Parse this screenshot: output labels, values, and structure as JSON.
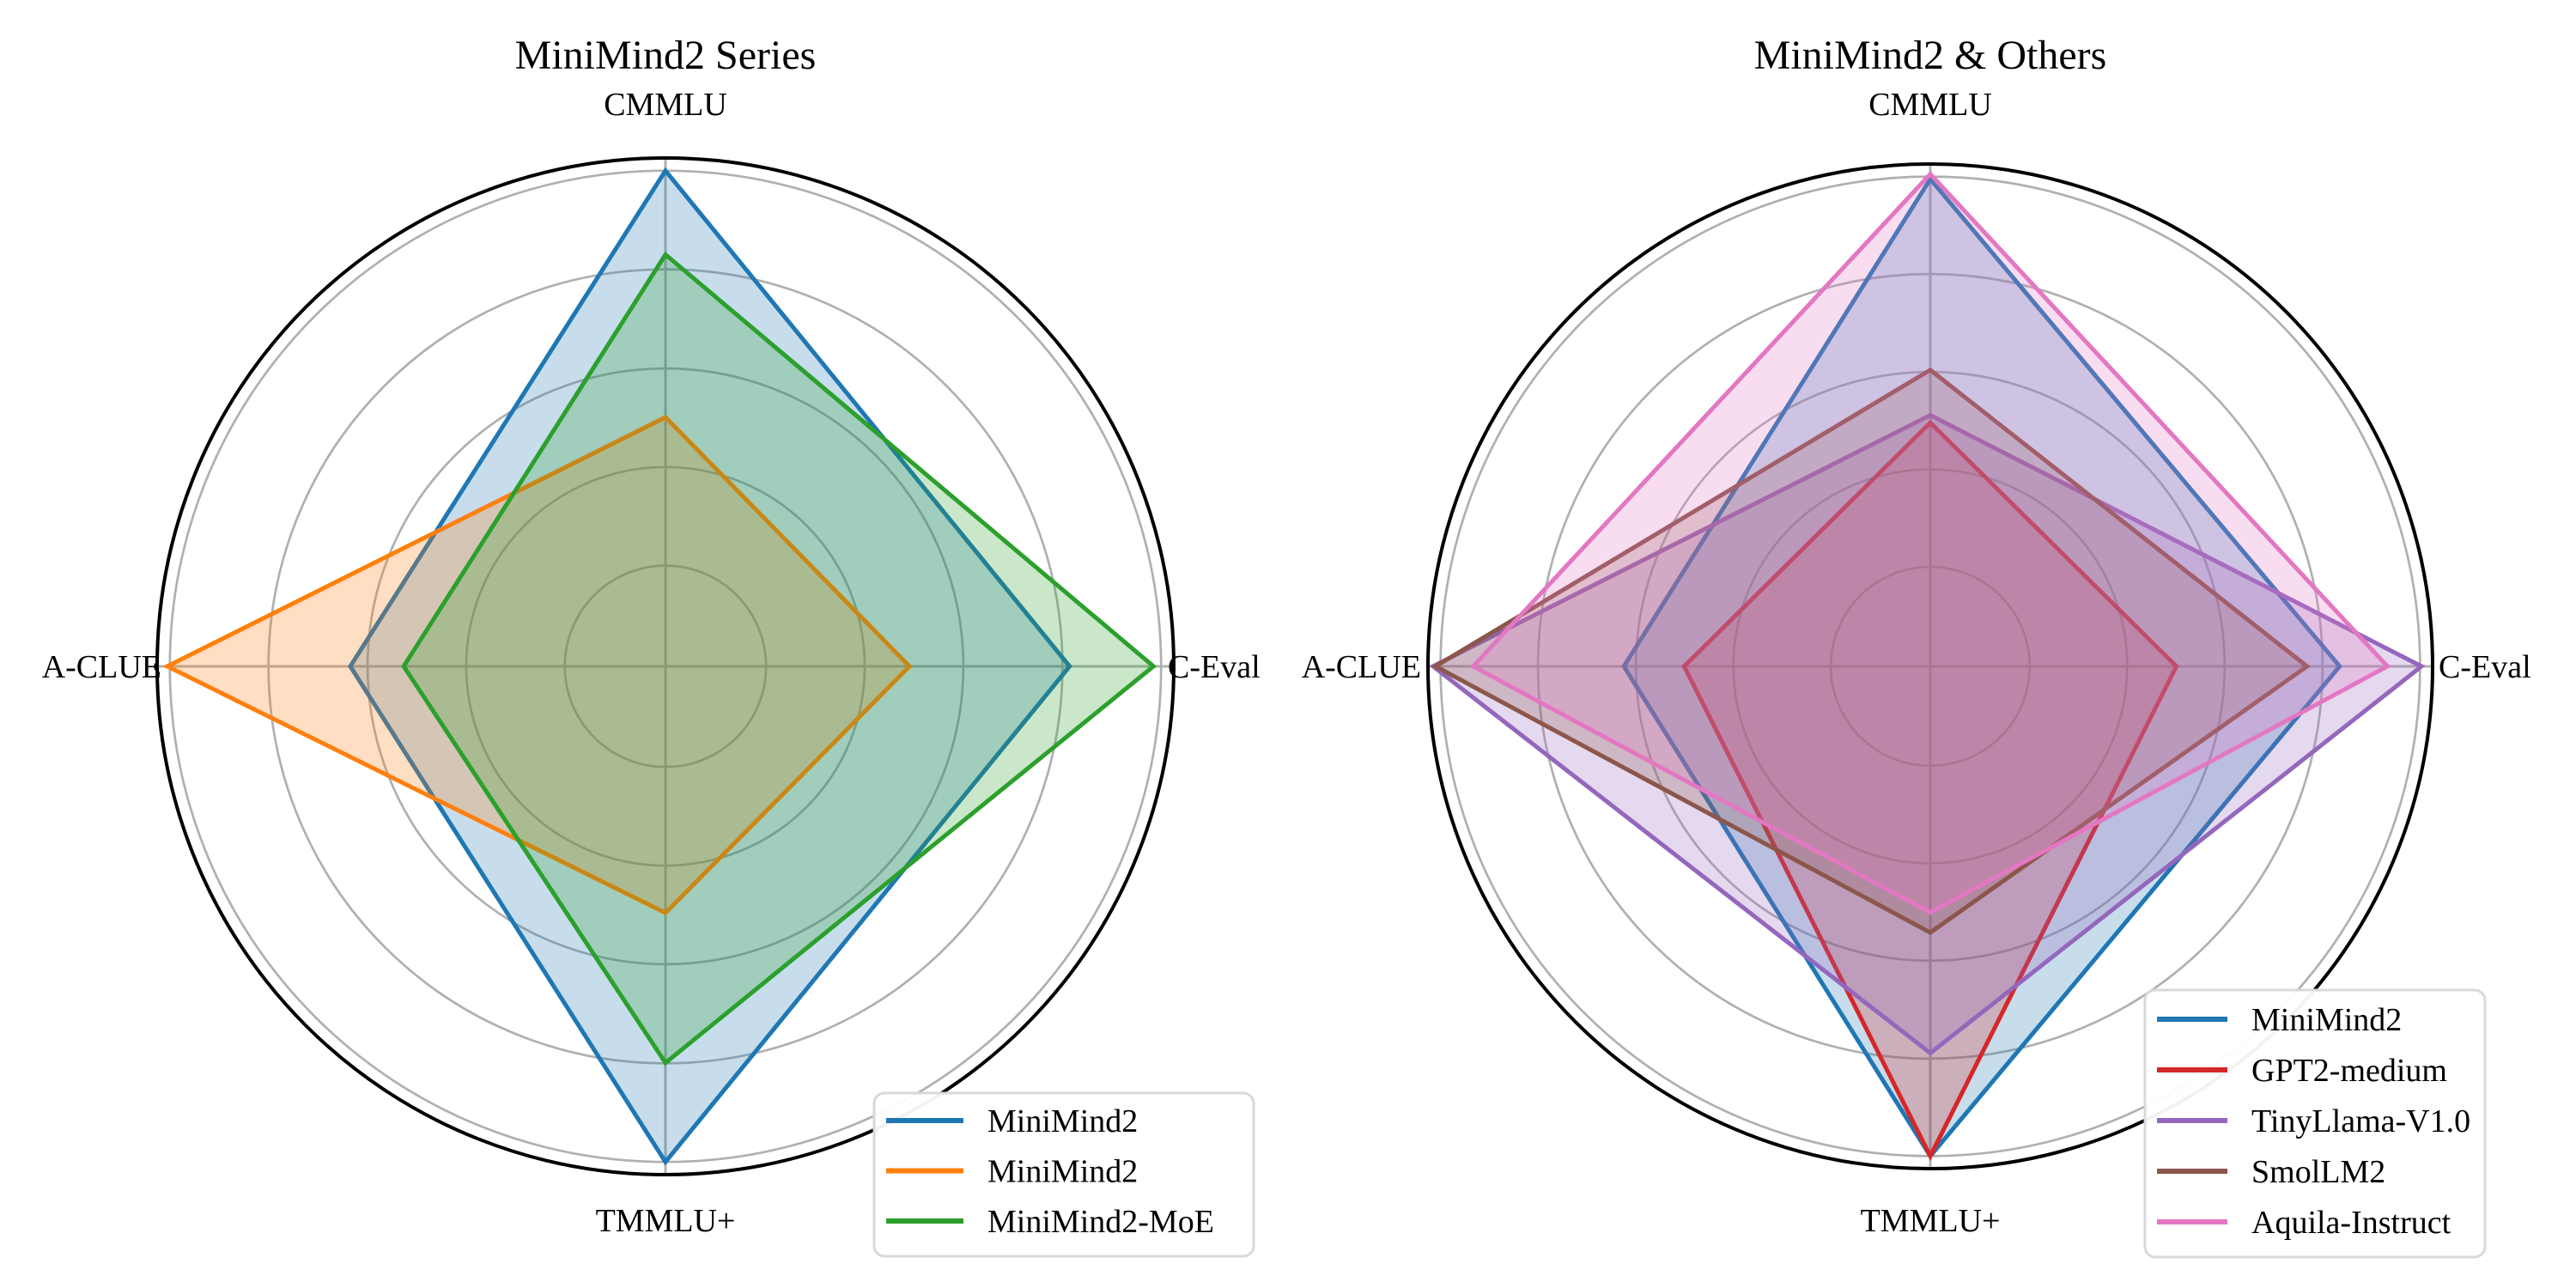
{
  "figure": {
    "background": "#ffffff",
    "left_title": "MiniMind2 Series",
    "right_title": "MiniMind2 & Others"
  },
  "style": {
    "grid_color": "#b0b0b0",
    "spine_color": "#000000",
    "fill_opacity": 0.25,
    "series_line_width": 5,
    "legend_border_color": "#d9d9d9",
    "legend_background": "rgba(255,255,255,0.95)"
  },
  "chart_data": [
    {
      "type": "radar",
      "title": "MiniMind2 Series",
      "axes": [
        "CMMLU",
        "C-Eval",
        "TMMLU+",
        "A-CLUE"
      ],
      "axis_positions": [
        "top",
        "right",
        "bottom",
        "left"
      ],
      "scale": {
        "min": 0,
        "max": 1,
        "note": "no numeric tick labels shown; values estimated as fraction of outer circle radius",
        "grid_rings": [
          0.198,
          0.392,
          0.586,
          0.781,
          0.975
        ]
      },
      "series": [
        {
          "name": "MiniMind2",
          "color": "#1f77b4",
          "values": [
            0.975,
            0.795,
            0.975,
            0.62
          ]
        },
        {
          "name": "MiniMind2",
          "color": "#ff7f0e",
          "values": [
            0.49,
            0.48,
            0.485,
            0.98
          ]
        },
        {
          "name": "MiniMind2-MoE",
          "color": "#2ca02c",
          "values": [
            0.81,
            0.96,
            0.78,
            0.515
          ]
        }
      ],
      "legend": {
        "position": "lower right",
        "labels": [
          "MiniMind2",
          "MiniMind2",
          "MiniMind2-MoE"
        ]
      }
    },
    {
      "type": "radar",
      "title": "MiniMind2 & Others",
      "axes": [
        "CMMLU",
        "C-Eval",
        "TMMLU+",
        "A-CLUE"
      ],
      "axis_positions": [
        "top",
        "right",
        "bottom",
        "left"
      ],
      "scale": {
        "min": 0,
        "max": 1,
        "note": "no numeric tick labels shown; values estimated as fraction of outer circle radius",
        "grid_rings": [
          0.198,
          0.392,
          0.586,
          0.781,
          0.975
        ]
      },
      "series": [
        {
          "name": "MiniMind2",
          "color": "#1f77b4",
          "values": [
            0.97,
            0.815,
            0.975,
            0.61
          ]
        },
        {
          "name": "GPT2-medium",
          "color": "#d62728",
          "values": [
            0.485,
            0.49,
            0.975,
            0.49
          ]
        },
        {
          "name": "TinyLlama-V1.0",
          "color": "#9467bd",
          "values": [
            0.5,
            0.978,
            0.77,
            0.99
          ]
        },
        {
          "name": "SmolLM2",
          "color": "#8c564b",
          "values": [
            0.59,
            0.75,
            0.53,
            0.985
          ]
        },
        {
          "name": "Aquila-Instruct",
          "color": "#e377c2",
          "values": [
            0.98,
            0.91,
            0.49,
            0.91
          ]
        }
      ],
      "legend": {
        "position": "lower right",
        "labels": [
          "MiniMind2",
          "GPT2-medium",
          "TinyLlama-V1.0",
          "SmolLM2",
          "Aquila-Instruct"
        ]
      }
    }
  ]
}
